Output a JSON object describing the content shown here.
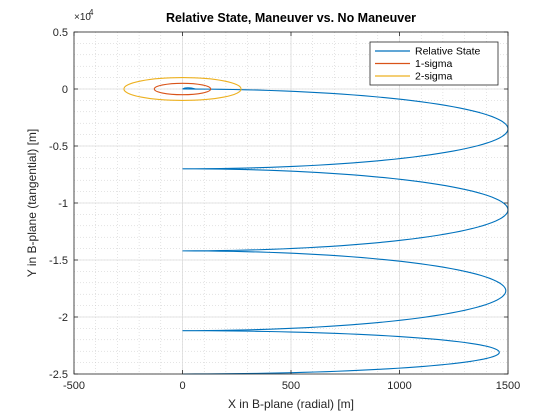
{
  "chart_data": {
    "type": "line",
    "title": "Relative State, Maneuver vs. No Maneuver",
    "xlabel": "X in B-plane (radial) [m]",
    "ylabel": "Y in B-plane (tangential) [m]",
    "xlim": [
      -500,
      1500
    ],
    "ylim": [
      -25000,
      5000
    ],
    "x_ticks": [
      -500,
      0,
      500,
      1000,
      1500
    ],
    "x_tick_labels": [
      "-500",
      "0",
      "500",
      "1000",
      "1500"
    ],
    "y_ticks": [
      -25000,
      -20000,
      -15000,
      -10000,
      -5000,
      0,
      5000
    ],
    "y_tick_labels": [
      "-2.5",
      "-2",
      "-1.5",
      "-1",
      "-0.5",
      "0",
      "0.5"
    ],
    "y_exponent_label": "×10",
    "y_exponent_power": "4",
    "grid": true,
    "minor_grid": true,
    "legend_position": "top-right",
    "colors": {
      "relative_state": "#0072BD",
      "sigma1": "#D95319",
      "sigma2": "#EDB120"
    },
    "series": [
      {
        "name": "Relative State",
        "type": "spiral",
        "y_start": 0,
        "y_end": -25000,
        "x_min": 0,
        "x_max": 1500,
        "turns": [
          {
            "y_top": 0,
            "y_bottom": -7000,
            "x_right": 1500
          },
          {
            "y_top": -7000,
            "y_bottom": -14200,
            "x_right": 1500
          },
          {
            "y_top": -14200,
            "y_bottom": -21200,
            "x_right": 1490
          },
          {
            "y_top": -21200,
            "y_bottom": -25000,
            "x_right": 1460
          }
        ]
      },
      {
        "name": "1-sigma",
        "type": "ellipse",
        "cx": 0,
        "cy": 0,
        "rx": 130,
        "ry": 500
      },
      {
        "name": "2-sigma",
        "type": "ellipse",
        "cx": 0,
        "cy": 0,
        "rx": 270,
        "ry": 1000
      }
    ]
  }
}
